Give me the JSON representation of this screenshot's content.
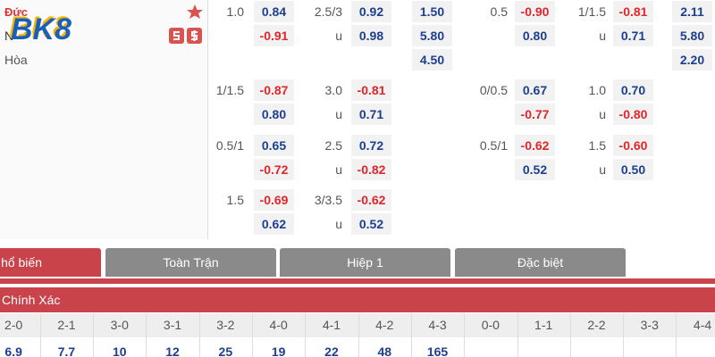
{
  "match": {
    "home": "Đức",
    "away": "N",
    "draw": "Hòa",
    "logo": "BK8"
  },
  "odds": {
    "rows": [
      [
        {
          "line": "1.0",
          "odds": "0.84"
        },
        {
          "line": "2.5/3",
          "odds": "0.92"
        },
        {
          "odds": "1.50"
        },
        {
          "line": "0.5",
          "odds": "-0.90"
        },
        {
          "line": "1/1.5",
          "odds": "-0.81"
        },
        {
          "odds": "2.11"
        }
      ],
      [
        {
          "odds": "-0.91"
        },
        {
          "line": "u",
          "odds": "0.98"
        },
        {
          "odds": "5.80"
        },
        {
          "odds": "0.80"
        },
        {
          "line": "u",
          "odds": "0.71"
        },
        {
          "odds": "5.80"
        }
      ],
      [
        null,
        null,
        {
          "odds": "4.50"
        },
        null,
        null,
        {
          "odds": "2.20"
        }
      ],
      [
        {
          "line": "1/1.5",
          "odds": "-0.87"
        },
        {
          "line": "3.0",
          "odds": "-0.81"
        },
        null,
        {
          "line": "0/0.5",
          "odds": "0.67"
        },
        {
          "line": "1.0",
          "odds": "0.70"
        },
        null
      ],
      [
        {
          "odds": "0.80"
        },
        {
          "line": "u",
          "odds": "0.71"
        },
        null,
        {
          "odds": "-0.77"
        },
        {
          "line": "u",
          "odds": "-0.80"
        },
        null
      ],
      [
        {
          "line": "0.5/1",
          "odds": "0.65"
        },
        {
          "line": "2.5",
          "odds": "0.72"
        },
        null,
        {
          "line": "0.5/1",
          "odds": "-0.62"
        },
        {
          "line": "1.5",
          "odds": "-0.60"
        },
        null
      ],
      [
        {
          "odds": "-0.72"
        },
        {
          "line": "u",
          "odds": "-0.82"
        },
        null,
        {
          "odds": "0.52"
        },
        {
          "line": "u",
          "odds": "0.50"
        },
        null
      ],
      [
        {
          "line": "1.5",
          "odds": "-0.69"
        },
        {
          "line": "3/3.5",
          "odds": "-0.62"
        },
        null,
        null,
        null,
        null
      ],
      [
        {
          "odds": "0.62"
        },
        {
          "line": "u",
          "odds": "0.52"
        },
        null,
        null,
        null,
        null
      ]
    ]
  },
  "tabs": [
    "hổ biến",
    "Toàn Trận",
    "Hiệp 1",
    "Đặc biệt"
  ],
  "correct_score": {
    "title": "Chính Xác",
    "scores": [
      "2-0",
      "2-1",
      "3-0",
      "3-1",
      "3-2",
      "4-0",
      "4-1",
      "4-2",
      "4-3",
      "0-0",
      "1-1",
      "2-2",
      "3-3",
      "4-4"
    ],
    "odds": [
      "6.9",
      "7.7",
      "10",
      "12",
      "25",
      "19",
      "22",
      "48",
      "165"
    ]
  }
}
